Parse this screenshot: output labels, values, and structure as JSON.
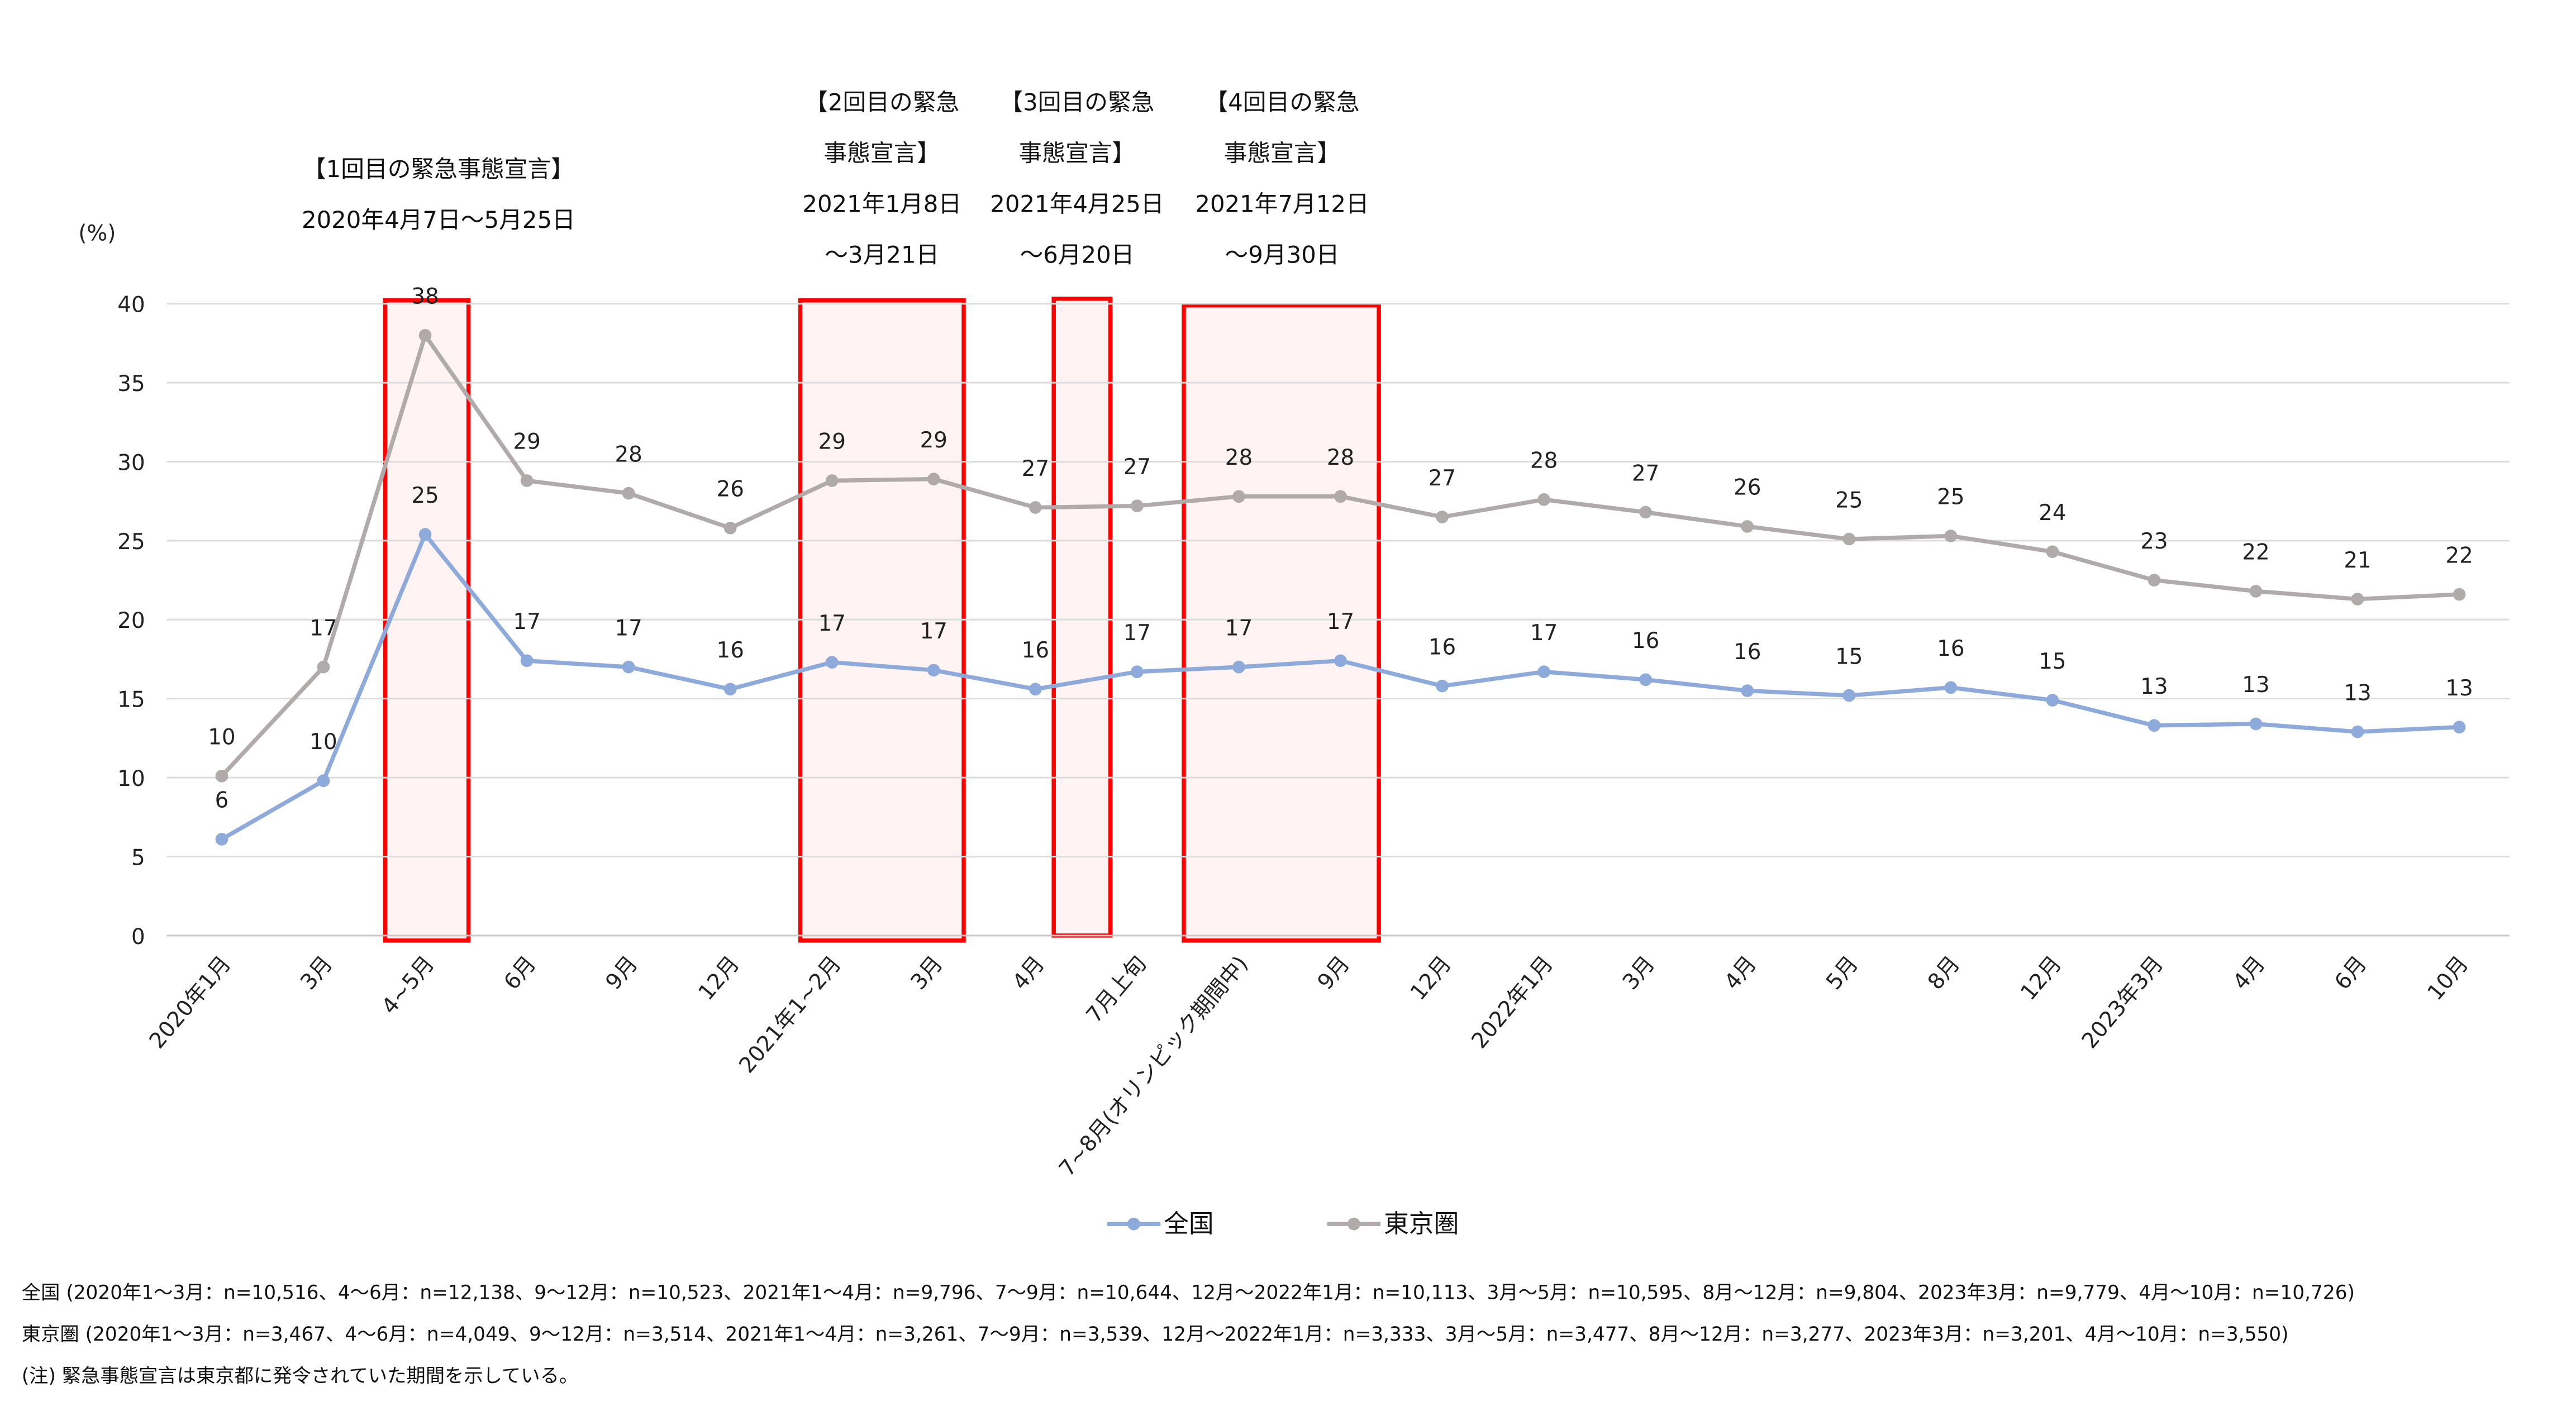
{
  "chart_data": {
    "type": "line",
    "ylabel": "(%)",
    "ylim": [
      0,
      40
    ],
    "yticks": [
      0,
      5,
      10,
      15,
      20,
      25,
      30,
      35,
      40
    ],
    "grid": true,
    "legend_position": "bottom-center",
    "categories": [
      "2020年1月",
      "3月",
      "4~5月",
      "6月",
      "9月",
      "12月",
      "2021年1~2月",
      "3月",
      "4月",
      "7月上旬",
      "7~8月(オリンピック期間中)",
      "9月",
      "12月",
      "2022年1月",
      "3月",
      "4月",
      "5月",
      "8月",
      "12月",
      "2023年3月",
      "4月",
      "6月",
      "10月"
    ],
    "series": [
      {
        "name": "全国",
        "color": "#8eaadb",
        "values": [
          6.1,
          9.8,
          25.4,
          17.4,
          17.0,
          15.6,
          17.3,
          16.8,
          15.6,
          16.7,
          17.0,
          17.4,
          15.8,
          16.7,
          16.2,
          15.5,
          15.2,
          15.7,
          14.9,
          13.3,
          13.4,
          12.9,
          13.2
        ],
        "labels": [
          "6",
          "10",
          "25",
          "17",
          "17",
          "16",
          "17",
          "17",
          "16",
          "17",
          "17",
          "17",
          "16",
          "17",
          "16",
          "16",
          "15",
          "16",
          "15",
          "13",
          "13",
          "13",
          "13"
        ]
      },
      {
        "name": "東京圏",
        "color": "#b0aaab",
        "values": [
          10.1,
          17.0,
          38.0,
          28.8,
          28.0,
          25.8,
          28.8,
          28.9,
          27.1,
          27.2,
          27.8,
          27.8,
          26.5,
          27.6,
          26.8,
          25.9,
          25.1,
          25.3,
          24.3,
          22.5,
          21.8,
          21.3,
          21.6
        ],
        "labels": [
          "10",
          "17",
          "38",
          "29",
          "28",
          "26",
          "29",
          "29",
          "27",
          "27",
          "28",
          "28",
          "27",
          "28",
          "27",
          "26",
          "25",
          "25",
          "24",
          "23",
          "22",
          "21",
          "22"
        ]
      }
    ],
    "highlight_color": "#ff0000",
    "annotations": [
      {
        "lines": [
          "【1回目の緊急事態宣言】",
          "2020年4月7日～5月25日"
        ]
      },
      {
        "lines": [
          "【2回目の緊急",
          "事態宣言】",
          "2021年1月8日",
          "～3月21日"
        ]
      },
      {
        "lines": [
          "【3回目の緊急",
          "事態宣言】",
          "2021年4月25日",
          "～6月20日"
        ]
      },
      {
        "lines": [
          "【4回目の緊急",
          "事態宣言】",
          "2021年7月12日",
          "～9月30日"
        ]
      }
    ],
    "footnotes": [
      "全国 (2020年1～3月：n=10,516、4～6月：n=12,138、9～12月：n=10,523、2021年1～4月：n=9,796、7～9月：n=10,644、12月～2022年1月：n=10,113、3月～5月：n=10,595、8月～12月：n=9,804、2023年3月：n=9,779、4月～10月：n=10,726)",
      "東京圏 (2020年1～3月：n=3,467、4～6月：n=4,049、9～12月：n=3,514、2021年1～4月：n=3,261、7～9月：n=3,539、12月～2022年1月：n=3,333、3月～5月：n=3,477、8月～12月：n=3,277、2023年3月：n=3,201、4月～10月：n=3,550)",
      "(注) 緊急事態宣言は東京都に発令されていた期間を示している。"
    ]
  }
}
